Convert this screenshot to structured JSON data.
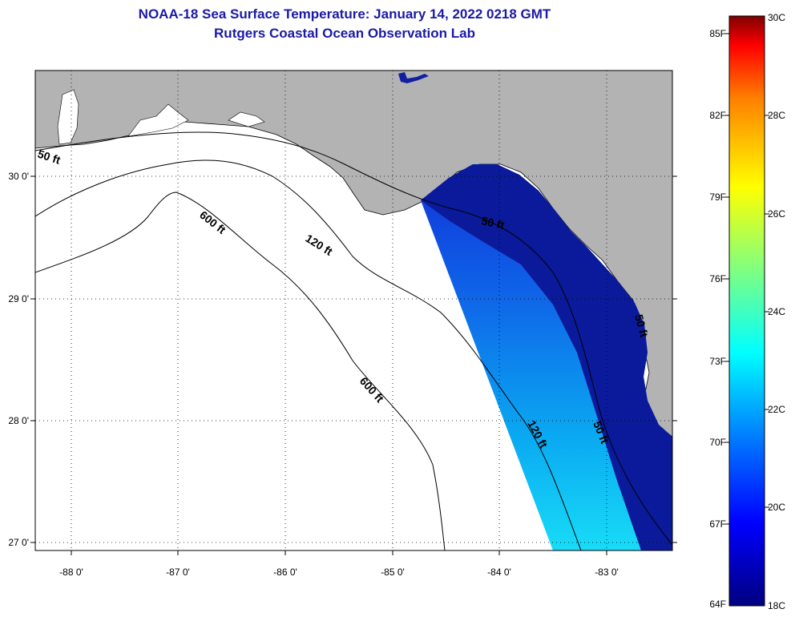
{
  "title": "NOAA-18 Sea Surface Temperature:  January 14, 2022 0218 GMT",
  "subtitle": "Rutgers Coastal Ocean Observation Lab",
  "map": {
    "longitude_labels": [
      "-88 0'",
      "-87 0'",
      "-86 0'",
      "-85 0'",
      "-84 0'",
      "-83 0'"
    ],
    "latitude_labels": [
      "30 0'",
      "29 0'",
      "28 0'",
      "27 0'"
    ],
    "contour_labels": [
      "50 ft",
      "600 ft",
      "120 ft",
      "50 ft",
      "600 ft",
      "120 ft",
      "50 ft",
      "50 ft"
    ],
    "land_color": "#b3b3b3",
    "ocean_color": "#ffffff"
  },
  "colorbar": {
    "fahrenheit_labels": [
      "85F",
      "82F",
      "79F",
      "76F",
      "73F",
      "70F",
      "67F",
      "64F"
    ],
    "celsius_labels": [
      "30C",
      "28C",
      "26C",
      "24C",
      "22C",
      "20C",
      "18C"
    ],
    "colors": [
      "#7f0000",
      "#ff0000",
      "#ff8000",
      "#ffff00",
      "#00ffff",
      "#0080ff",
      "#0000ff",
      "#00007f"
    ]
  }
}
